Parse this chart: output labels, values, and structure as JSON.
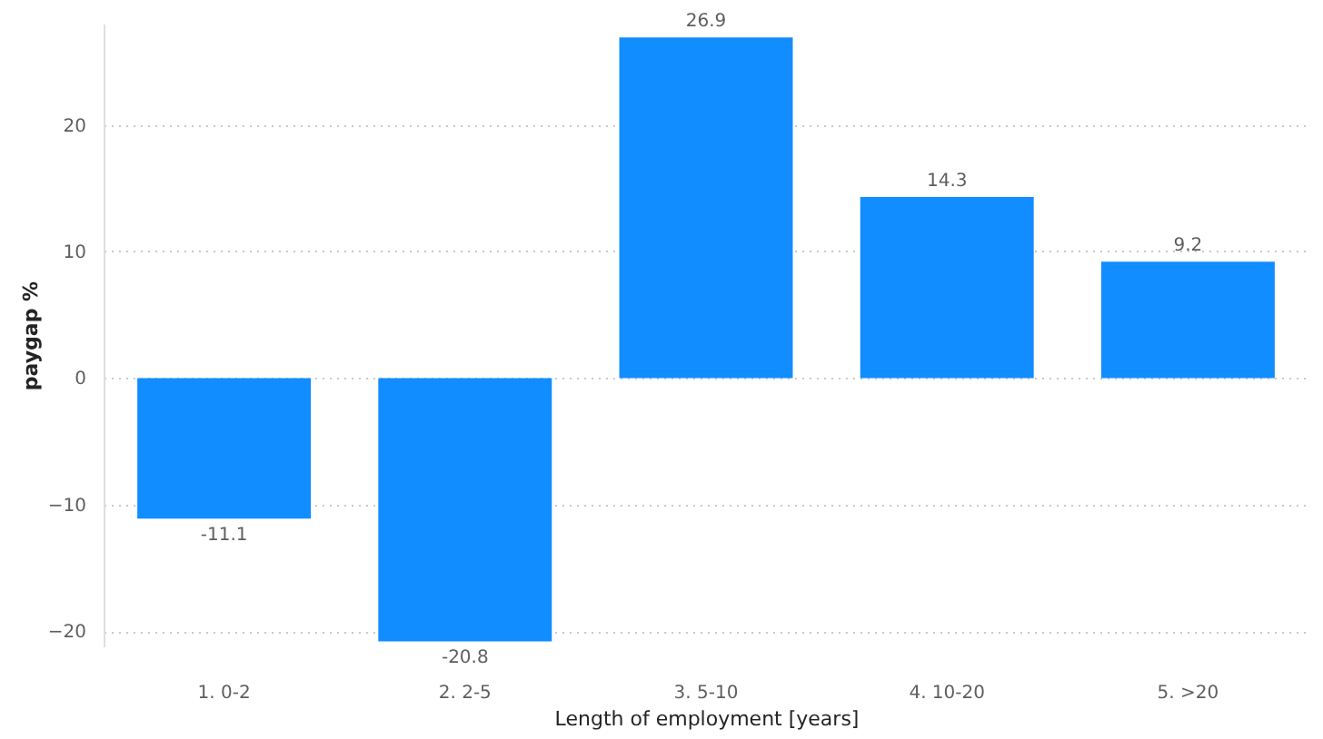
{
  "chart_data": {
    "type": "bar",
    "categories": [
      "1. 0-2",
      "2. 2-5",
      "3. 5-10",
      "4. 10-20",
      "5. >20"
    ],
    "values": [
      -11.1,
      -20.8,
      26.9,
      14.3,
      9.2
    ],
    "color": "#118dff",
    "xlabel": "Length of employment [years]",
    "ylabel": "paygap %",
    "ylim": [
      -21.2,
      28
    ],
    "yticks": [
      -20,
      -10,
      0,
      10,
      20
    ],
    "grid": "y",
    "data_labels": true
  }
}
